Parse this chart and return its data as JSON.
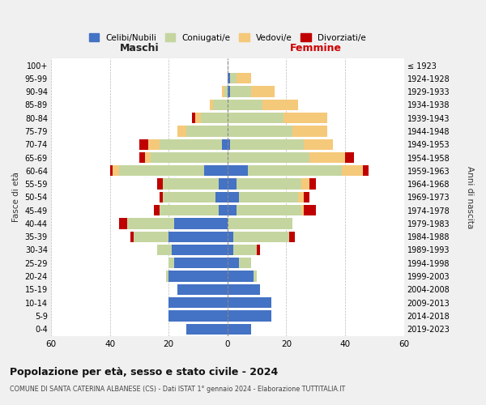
{
  "age_groups": [
    "0-4",
    "5-9",
    "10-14",
    "15-19",
    "20-24",
    "25-29",
    "30-34",
    "35-39",
    "40-44",
    "45-49",
    "50-54",
    "55-59",
    "60-64",
    "65-69",
    "70-74",
    "75-79",
    "80-84",
    "85-89",
    "90-94",
    "95-99",
    "100+"
  ],
  "birth_years": [
    "2019-2023",
    "2014-2018",
    "2009-2013",
    "2004-2008",
    "1999-2003",
    "1994-1998",
    "1989-1993",
    "1984-1988",
    "1979-1983",
    "1974-1978",
    "1969-1973",
    "1964-1968",
    "1959-1963",
    "1954-1958",
    "1949-1953",
    "1944-1948",
    "1939-1943",
    "1934-1938",
    "1929-1933",
    "1924-1928",
    "≤ 1923"
  ],
  "maschi_celibi": [
    14,
    20,
    20,
    17,
    20,
    18,
    19,
    20,
    18,
    3,
    4,
    3,
    8,
    0,
    2,
    0,
    0,
    0,
    0,
    0,
    0
  ],
  "maschi_coniugati": [
    0,
    0,
    0,
    0,
    1,
    2,
    5,
    12,
    16,
    20,
    18,
    19,
    29,
    26,
    21,
    14,
    9,
    5,
    1,
    0,
    0
  ],
  "maschi_vedovi": [
    0,
    0,
    0,
    0,
    0,
    0,
    0,
    0,
    0,
    0,
    0,
    0,
    2,
    2,
    4,
    3,
    2,
    1,
    1,
    0,
    0
  ],
  "maschi_divorziati": [
    0,
    0,
    0,
    0,
    0,
    0,
    0,
    1,
    3,
    2,
    1,
    2,
    1,
    2,
    3,
    0,
    1,
    0,
    0,
    0,
    0
  ],
  "femmine_celibi": [
    8,
    15,
    15,
    11,
    9,
    4,
    2,
    2,
    0,
    3,
    4,
    3,
    7,
    0,
    1,
    0,
    0,
    0,
    1,
    1,
    0
  ],
  "femmine_coniugati": [
    0,
    0,
    0,
    0,
    1,
    4,
    8,
    19,
    22,
    22,
    20,
    22,
    32,
    28,
    25,
    22,
    19,
    12,
    7,
    2,
    0
  ],
  "femmine_vedovi": [
    0,
    0,
    0,
    0,
    0,
    0,
    0,
    0,
    0,
    1,
    2,
    3,
    7,
    12,
    10,
    12,
    15,
    12,
    8,
    5,
    0
  ],
  "femmine_divorziati": [
    0,
    0,
    0,
    0,
    0,
    0,
    1,
    2,
    0,
    4,
    2,
    2,
    2,
    3,
    0,
    0,
    0,
    0,
    0,
    0,
    0
  ],
  "colors": {
    "celibi": "#4472C4",
    "coniugati": "#C5D5A0",
    "vedovi": "#F5C97A",
    "divorziati": "#C00000"
  },
  "xlim": 60,
  "title": "Popolazione per età, sesso e stato civile - 2024",
  "subtitle": "COMUNE DI SANTA CATERINA ALBANESE (CS) - Dati ISTAT 1° gennaio 2024 - Elaborazione TUTTITALIA.IT",
  "ylabel": "Fasce di età",
  "ylabel_right": "Anni di nascita",
  "maschi_label": "Maschi",
  "femmine_label": "Femmine",
  "legend_labels": [
    "Celibi/Nubili",
    "Coniugati/e",
    "Vedovi/e",
    "Divorziati/e"
  ],
  "bg_color": "#f0f0f0",
  "plot_bg_color": "#ffffff"
}
